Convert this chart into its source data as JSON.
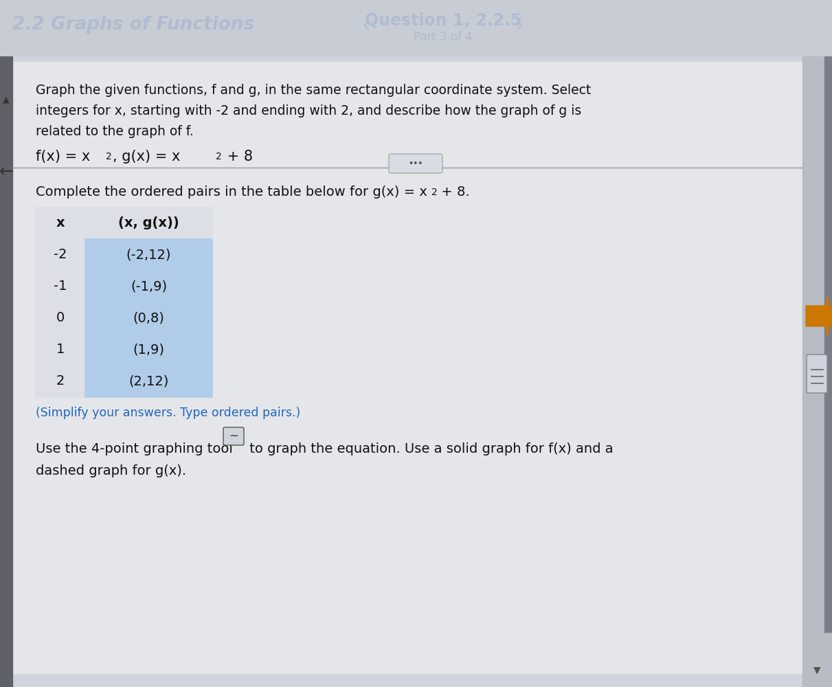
{
  "header_bg": "#1c1c2e",
  "header_text_left": "2.2 Graphs of Functions",
  "header_text_right": "Question 1, 2.2.5",
  "header_subtext_right": "Part 3 of 4",
  "header_text_color": "#b0bcd0",
  "body_bg": "#c8ccd4",
  "content_bg": "#d0d4dc",
  "white_bg": "#e8eaec",
  "body_text_color": "#111111",
  "instruction_line1": "Graph the given functions, f and g, in the same rectangular coordinate system. Select",
  "instruction_line2": "integers for x, starting with -2 and ending with 2, and describe how the graph of g is",
  "instruction_line3": "related to the graph of f.",
  "complete_text_pre": "Complete the ordered pairs in the table below for g(x) = x",
  "complete_text_post": " + 8.",
  "table_headers": [
    "x",
    "(x, g(x))"
  ],
  "table_rows": [
    [
      "-2",
      "(-2,12)"
    ],
    [
      "-1",
      "(-1,9)"
    ],
    [
      "0",
      "(0,8)"
    ],
    [
      "1",
      "(1,9)"
    ],
    [
      "2",
      "(2,12)"
    ]
  ],
  "highlight_color": "#b0cce8",
  "simplify_text": "(Simplify your answers. Type ordered pairs.)",
  "simplify_color": "#2266bb",
  "tool_line1": "Use the 4-point graphing tool",
  "tool_line2": " to graph the equation. Use a solid graph for f(x) and a",
  "tool_line3": "dashed graph for g(x).",
  "back_arrow_color": "#444444",
  "left_bar_color": "#888890",
  "scrollbar_bg": "#b8bcc4",
  "scrollbar_thumb": "#7a7e8a",
  "right_arrow_color": "#cc8800",
  "dots_bg": "#d8dce4",
  "dots_border": "#aaaaaa",
  "nav_left": "‹",
  "nav_right": "›",
  "dots_text": "•••",
  "back_arrow": "←",
  "up_arrow": "▲",
  "down_arrow": "▼"
}
